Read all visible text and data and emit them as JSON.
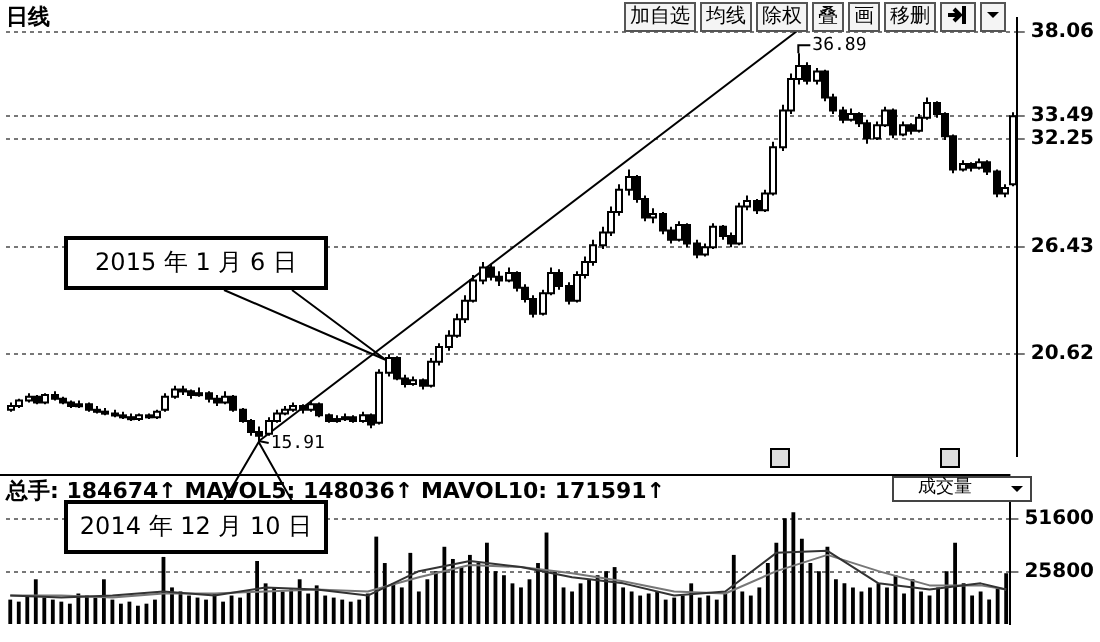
{
  "chart_data": [
    {
      "type": "candlestick",
      "title": "日线",
      "color": "#000000",
      "tick_labels": "y",
      "grid": "y",
      "legend": false,
      "categories": [
        null,
        null,
        null,
        null,
        null,
        null,
        null,
        null,
        null,
        null,
        null,
        null,
        null,
        null,
        null,
        null,
        null,
        null,
        null,
        null,
        null,
        null,
        null,
        null,
        null,
        null,
        null,
        null,
        null,
        null,
        null,
        null,
        null,
        null,
        null,
        null,
        null,
        null,
        null,
        null,
        null,
        null,
        null,
        null,
        null,
        null,
        null,
        null,
        null,
        null,
        null,
        null,
        null,
        null,
        null,
        null,
        null,
        null,
        null,
        null,
        null,
        null,
        null,
        null,
        null,
        null,
        null,
        null,
        null,
        null,
        null,
        null,
        null,
        null,
        null,
        null,
        null,
        null,
        null,
        null,
        null,
        null,
        null,
        null,
        null,
        null,
        null,
        null,
        null,
        null,
        null,
        null,
        null,
        null,
        null,
        null,
        null,
        null,
        null,
        null,
        null,
        null,
        null,
        null,
        null,
        null,
        null,
        null,
        null,
        null,
        null,
        null,
        null,
        null,
        null,
        null,
        null,
        null
      ],
      "ylim": [
        15.1,
        38.8
      ],
      "yticks": [
        20.62,
        26.43,
        32.25,
        33.49,
        38.06
      ],
      "ohlc": [
        [
          17.6,
          18.0,
          17.5,
          17.8
        ],
        [
          17.8,
          18.2,
          17.7,
          18.1
        ],
        [
          18.1,
          18.5,
          18.0,
          18.3
        ],
        [
          18.3,
          18.4,
          17.9,
          18.0
        ],
        [
          18.0,
          18.5,
          17.9,
          18.4
        ],
        [
          18.4,
          18.6,
          18.1,
          18.2
        ],
        [
          18.2,
          18.3,
          17.9,
          18.0
        ],
        [
          18.0,
          18.1,
          17.7,
          17.8
        ],
        [
          17.8,
          18.1,
          17.7,
          17.9
        ],
        [
          17.9,
          18.0,
          17.5,
          17.6
        ],
        [
          17.6,
          17.8,
          17.4,
          17.5
        ],
        [
          17.5,
          17.7,
          17.3,
          17.4
        ],
        [
          17.4,
          17.6,
          17.2,
          17.3
        ],
        [
          17.3,
          17.5,
          17.1,
          17.2
        ],
        [
          17.2,
          17.4,
          17.0,
          17.1
        ],
        [
          17.1,
          17.4,
          17.0,
          17.3
        ],
        [
          17.3,
          17.4,
          17.1,
          17.2
        ],
        [
          17.2,
          17.6,
          17.1,
          17.5
        ],
        [
          17.6,
          18.5,
          17.5,
          18.3
        ],
        [
          18.3,
          18.9,
          18.2,
          18.7
        ],
        [
          18.7,
          18.9,
          18.4,
          18.6
        ],
        [
          18.6,
          18.7,
          18.2,
          18.4
        ],
        [
          18.4,
          18.8,
          18.3,
          18.5
        ],
        [
          18.5,
          18.6,
          18.0,
          18.2
        ],
        [
          18.2,
          18.4,
          17.8,
          18.0
        ],
        [
          18.0,
          18.6,
          17.9,
          18.3
        ],
        [
          18.3,
          18.4,
          17.5,
          17.6
        ],
        [
          17.6,
          17.7,
          16.9,
          17.0
        ],
        [
          17.0,
          17.1,
          16.2,
          16.4
        ],
        [
          16.4,
          16.7,
          15.91,
          16.2
        ],
        [
          16.3,
          17.2,
          16.2,
          17.0
        ],
        [
          17.0,
          17.6,
          16.9,
          17.4
        ],
        [
          17.4,
          17.8,
          17.3,
          17.6
        ],
        [
          17.6,
          18.0,
          17.5,
          17.8
        ],
        [
          17.8,
          17.9,
          17.4,
          17.6
        ],
        [
          17.6,
          18.1,
          17.5,
          17.9
        ],
        [
          17.9,
          18.0,
          17.2,
          17.3
        ],
        [
          17.3,
          17.4,
          16.9,
          17.0
        ],
        [
          17.0,
          17.3,
          16.9,
          17.1
        ],
        [
          17.1,
          17.4,
          17.0,
          17.2
        ],
        [
          17.2,
          17.3,
          16.9,
          17.0
        ],
        [
          17.0,
          17.5,
          16.9,
          17.3
        ],
        [
          17.3,
          17.4,
          16.6,
          16.8
        ],
        [
          16.9,
          19.8,
          16.8,
          19.6
        ],
        [
          19.6,
          20.6,
          19.4,
          20.4
        ],
        [
          20.4,
          20.5,
          19.2,
          19.3
        ],
        [
          19.3,
          19.5,
          18.8,
          19.0
        ],
        [
          19.0,
          19.4,
          18.9,
          19.2
        ],
        [
          19.2,
          19.3,
          18.7,
          18.9
        ],
        [
          18.9,
          20.4,
          18.8,
          20.2
        ],
        [
          20.2,
          21.2,
          20.0,
          21.0
        ],
        [
          21.0,
          21.9,
          20.8,
          21.6
        ],
        [
          21.6,
          22.8,
          21.5,
          22.5
        ],
        [
          22.5,
          23.8,
          22.3,
          23.5
        ],
        [
          23.5,
          24.9,
          23.4,
          24.6
        ],
        [
          24.6,
          25.6,
          24.4,
          25.3
        ],
        [
          25.3,
          25.5,
          24.6,
          24.8
        ],
        [
          24.8,
          25.1,
          24.3,
          24.6
        ],
        [
          24.6,
          25.3,
          24.5,
          25.0
        ],
        [
          25.0,
          25.1,
          24.0,
          24.2
        ],
        [
          24.2,
          24.4,
          23.4,
          23.6
        ],
        [
          23.6,
          23.8,
          22.6,
          22.8
        ],
        [
          22.8,
          24.1,
          22.7,
          23.9
        ],
        [
          23.9,
          25.3,
          23.8,
          25.0
        ],
        [
          25.0,
          25.2,
          24.1,
          24.3
        ],
        [
          24.3,
          24.5,
          23.3,
          23.5
        ],
        [
          23.5,
          25.1,
          23.4,
          24.9
        ],
        [
          24.9,
          25.9,
          24.7,
          25.6
        ],
        [
          25.6,
          26.8,
          25.4,
          26.5
        ],
        [
          26.5,
          27.5,
          26.3,
          27.2
        ],
        [
          27.2,
          28.6,
          27.0,
          28.3
        ],
        [
          28.3,
          29.8,
          28.1,
          29.5
        ],
        [
          29.5,
          30.6,
          29.2,
          30.2
        ],
        [
          30.2,
          30.3,
          28.8,
          29.0
        ],
        [
          29.0,
          29.2,
          27.8,
          28.0
        ],
        [
          28.0,
          28.5,
          27.7,
          28.2
        ],
        [
          28.2,
          28.3,
          27.1,
          27.3
        ],
        [
          27.3,
          27.5,
          26.6,
          26.8
        ],
        [
          26.8,
          27.8,
          26.7,
          27.6
        ],
        [
          27.6,
          27.7,
          26.4,
          26.6
        ],
        [
          26.6,
          26.8,
          25.8,
          26.0
        ],
        [
          26.0,
          26.6,
          25.9,
          26.4
        ],
        [
          26.4,
          27.7,
          26.3,
          27.5
        ],
        [
          27.5,
          27.6,
          26.8,
          27.0
        ],
        [
          27.0,
          27.2,
          26.4,
          26.6
        ],
        [
          26.6,
          28.8,
          26.5,
          28.6
        ],
        [
          28.6,
          29.2,
          28.4,
          28.9
        ],
        [
          28.9,
          29.0,
          28.2,
          28.4
        ],
        [
          28.4,
          29.5,
          28.3,
          29.3
        ],
        [
          29.3,
          32.1,
          29.2,
          31.8
        ],
        [
          31.8,
          34.1,
          31.6,
          33.8
        ],
        [
          33.8,
          35.8,
          33.6,
          35.5
        ],
        [
          35.5,
          36.89,
          35.2,
          36.2
        ],
        [
          36.2,
          36.4,
          35.2,
          35.4
        ],
        [
          35.4,
          36.1,
          35.2,
          35.9
        ],
        [
          35.9,
          36.0,
          34.3,
          34.5
        ],
        [
          34.5,
          34.7,
          33.6,
          33.8
        ],
        [
          33.8,
          34.0,
          33.1,
          33.3
        ],
        [
          33.3,
          33.9,
          33.2,
          33.6
        ],
        [
          33.6,
          33.7,
          32.9,
          33.1
        ],
        [
          33.1,
          33.3,
          32.0,
          32.3
        ],
        [
          32.3,
          33.2,
          32.2,
          33.0
        ],
        [
          33.0,
          34.0,
          32.9,
          33.8
        ],
        [
          33.8,
          33.9,
          32.3,
          32.5
        ],
        [
          32.5,
          33.2,
          32.4,
          33.0
        ],
        [
          33.0,
          33.1,
          32.5,
          32.7
        ],
        [
          32.7,
          33.6,
          32.6,
          33.4
        ],
        [
          33.4,
          34.5,
          33.3,
          34.2
        ],
        [
          34.2,
          34.3,
          33.4,
          33.6
        ],
        [
          33.6,
          33.7,
          32.2,
          32.4
        ],
        [
          32.4,
          32.5,
          30.4,
          30.6
        ],
        [
          30.6,
          31.1,
          30.5,
          30.9
        ],
        [
          30.9,
          31.0,
          30.5,
          30.7
        ],
        [
          30.7,
          31.2,
          30.6,
          31.0
        ],
        [
          31.0,
          31.1,
          30.3,
          30.5
        ],
        [
          30.5,
          30.6,
          29.1,
          29.3
        ],
        [
          29.3,
          29.8,
          29.1,
          29.6
        ],
        [
          29.8,
          33.7,
          29.7,
          33.49
        ]
      ],
      "series": [
        {
          "type": "line",
          "color": "#000000",
          "values": [
            null,
            null,
            null,
            null,
            null,
            null,
            null,
            null,
            null,
            null,
            null,
            null,
            null,
            null,
            null,
            null,
            null,
            null,
            null,
            null,
            null,
            null,
            null,
            null,
            null,
            null,
            null,
            null,
            null,
            15.9,
            null,
            null,
            null,
            null,
            null,
            null,
            null,
            null,
            null,
            null,
            null,
            null,
            null,
            null,
            null,
            null,
            null,
            null,
            null,
            null,
            null,
            null,
            null,
            null,
            null,
            null,
            null,
            null,
            null,
            null,
            null,
            null,
            null,
            null,
            null,
            null,
            null,
            null,
            null,
            null,
            null,
            null,
            null,
            null,
            null,
            null,
            null,
            null,
            null,
            null,
            null,
            null,
            null,
            null,
            null,
            null,
            null,
            null,
            null,
            null,
            null,
            null,
            null,
            38.5,
            null,
            null,
            null,
            null,
            null,
            null,
            null,
            null,
            null,
            null,
            null,
            null,
            null,
            null,
            null,
            null,
            null,
            null,
            null,
            null,
            null,
            null,
            null,
            null
          ]
        }
      ],
      "annotations": [
        "36.89",
        "15.91",
        "2015 年 1 月 6 日",
        "2014 年 12 月 10 日",
        "加自选",
        "均线",
        "除权",
        "叠",
        "画",
        "移删"
      ]
    },
    {
      "type": "bar",
      "title": "总手: 184674↑ MAVOL5: 148036↑ MAVOL10: 171591↑",
      "tick_labels": "y",
      "grid": "y",
      "legend": false,
      "categories": [
        null,
        null,
        null,
        null,
        null,
        null,
        null,
        null,
        null,
        null,
        null,
        null,
        null,
        null,
        null,
        null,
        null,
        null,
        null,
        null,
        null,
        null,
        null,
        null,
        null,
        null,
        null,
        null,
        null,
        null,
        null,
        null,
        null,
        null,
        null,
        null,
        null,
        null,
        null,
        null,
        null,
        null,
        null,
        null,
        null,
        null,
        null,
        null,
        null,
        null,
        null,
        null,
        null,
        null,
        null,
        null,
        null,
        null,
        null,
        null,
        null,
        null,
        null,
        null,
        null,
        null,
        null,
        null,
        null,
        null,
        null,
        null,
        null,
        null,
        null,
        null,
        null,
        null,
        null,
        null,
        null,
        null,
        null,
        null,
        null,
        null,
        null,
        null,
        null,
        null,
        null,
        null,
        null,
        null,
        null,
        null,
        null,
        null,
        null,
        null,
        null,
        null,
        null,
        null,
        null,
        null,
        null,
        null,
        null,
        null,
        null,
        null,
        null,
        null,
        null,
        null,
        null,
        null
      ],
      "ylim": [
        0,
        62000
      ],
      "yticks": [
        25800,
        51600
      ],
      "series": [
        {
          "type": "bar",
          "color": "#000000",
          "values": [
            12000,
            11000,
            14000,
            22000,
            13000,
            12000,
            11000,
            10000,
            15000,
            14000,
            13000,
            22000,
            12000,
            10000,
            11000,
            9000,
            10000,
            12000,
            33000,
            18000,
            16000,
            14000,
            13000,
            12000,
            15000,
            11000,
            14000,
            13000,
            16000,
            31000,
            20000,
            18000,
            16000,
            17000,
            22000,
            15000,
            19000,
            14000,
            13000,
            12000,
            11000,
            12000,
            15000,
            43000,
            30000,
            20000,
            18000,
            35000,
            16000,
            22000,
            26000,
            38000,
            32000,
            28000,
            34000,
            30000,
            40000,
            26000,
            24000,
            20000,
            18000,
            22000,
            30000,
            45000,
            26000,
            18000,
            16000,
            20000,
            22000,
            24000,
            26000,
            28000,
            18000,
            16000,
            14000,
            15000,
            16000,
            12000,
            13000,
            14000,
            20000,
            13000,
            14000,
            12000,
            15000,
            34000,
            16000,
            14000,
            18000,
            30000,
            40000,
            52000,
            55000,
            42000,
            30000,
            26000,
            38000,
            22000,
            20000,
            18000,
            16000,
            18000,
            20000,
            18000,
            24000,
            15000,
            22000,
            16000,
            14000,
            18000,
            26000,
            40000,
            20000,
            14000,
            16000,
            12000,
            18000,
            25000
          ]
        },
        {
          "type": "line",
          "color": "#333333",
          "values": [
            14000,
            null,
            null,
            null,
            null,
            null,
            13000,
            null,
            null,
            null,
            null,
            null,
            14000,
            null,
            null,
            null,
            null,
            null,
            16000,
            null,
            null,
            null,
            null,
            null,
            14000,
            null,
            null,
            null,
            null,
            null,
            18000,
            null,
            null,
            null,
            null,
            null,
            17000,
            null,
            null,
            null,
            null,
            null,
            14000,
            null,
            null,
            null,
            null,
            null,
            26000,
            null,
            null,
            null,
            null,
            null,
            31000,
            null,
            null,
            null,
            null,
            null,
            28000,
            null,
            null,
            null,
            null,
            null,
            23000,
            null,
            null,
            null,
            null,
            null,
            20000,
            null,
            null,
            null,
            null,
            null,
            14000,
            null,
            null,
            null,
            null,
            null,
            16000,
            null,
            null,
            null,
            null,
            null,
            35000,
            null,
            null,
            null,
            null,
            null,
            36000,
            null,
            null,
            null,
            null,
            null,
            20000,
            null,
            null,
            null,
            null,
            null,
            17000,
            null,
            null,
            null,
            null,
            null,
            20000,
            null,
            null,
            17000
          ]
        },
        {
          "type": "line",
          "color": "#777777",
          "values": [
            14000,
            null,
            null,
            null,
            null,
            null,
            14000,
            null,
            null,
            null,
            null,
            null,
            13000,
            null,
            null,
            null,
            null,
            null,
            15000,
            null,
            null,
            null,
            null,
            null,
            15000,
            null,
            null,
            null,
            null,
            null,
            16000,
            null,
            null,
            null,
            null,
            null,
            17000,
            null,
            null,
            null,
            null,
            null,
            16000,
            null,
            null,
            null,
            null,
            null,
            23000,
            null,
            null,
            null,
            null,
            null,
            29000,
            null,
            null,
            null,
            null,
            null,
            28000,
            null,
            null,
            null,
            null,
            null,
            25000,
            null,
            null,
            null,
            null,
            null,
            21000,
            null,
            null,
            null,
            null,
            null,
            16000,
            null,
            null,
            null,
            null,
            null,
            15000,
            null,
            null,
            null,
            null,
            null,
            26000,
            null,
            null,
            null,
            null,
            null,
            34000,
            null,
            null,
            null,
            null,
            null,
            26000,
            null,
            null,
            null,
            null,
            null,
            19000,
            null,
            null,
            null,
            null,
            null,
            19000,
            null,
            null,
            17000
          ]
        }
      ],
      "annotations": [
        "成交量"
      ]
    }
  ]
}
